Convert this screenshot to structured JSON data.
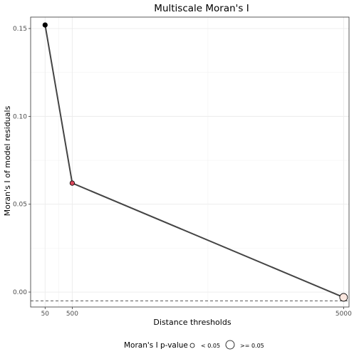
{
  "chart_data": {
    "type": "line",
    "title": "Multiscale Moran's I",
    "xlabel": "Distance thresholds",
    "ylabel": "Moran's I of model residuals",
    "x": [
      50,
      500,
      5000
    ],
    "x_ticks": [
      "50",
      "500",
      "5000"
    ],
    "xlim": [
      -190,
      5090
    ],
    "ylim": [
      -0.0085,
      0.1565
    ],
    "y_ticks": [
      0.0,
      0.05,
      0.1,
      0.15
    ],
    "y_tick_labels": [
      "0.00",
      "0.05",
      "0.10",
      "0.15"
    ],
    "series": [
      {
        "values": [
          0.152,
          0.062,
          -0.003
        ],
        "point_colors": [
          "#000000",
          "#d9475b",
          "#fbe7df"
        ],
        "p_value_group": [
          "< 0.05",
          "< 0.05",
          ">= 0.05"
        ]
      }
    ],
    "reference_line": {
      "y": -0.005,
      "style": "dashed"
    },
    "grid": true,
    "legend": {
      "position": "bottom",
      "title": "Moran's I p-value",
      "items": [
        {
          "label": "< 0.05",
          "size": "small"
        },
        {
          "label": ">= 0.05",
          "size": "large"
        }
      ]
    }
  }
}
